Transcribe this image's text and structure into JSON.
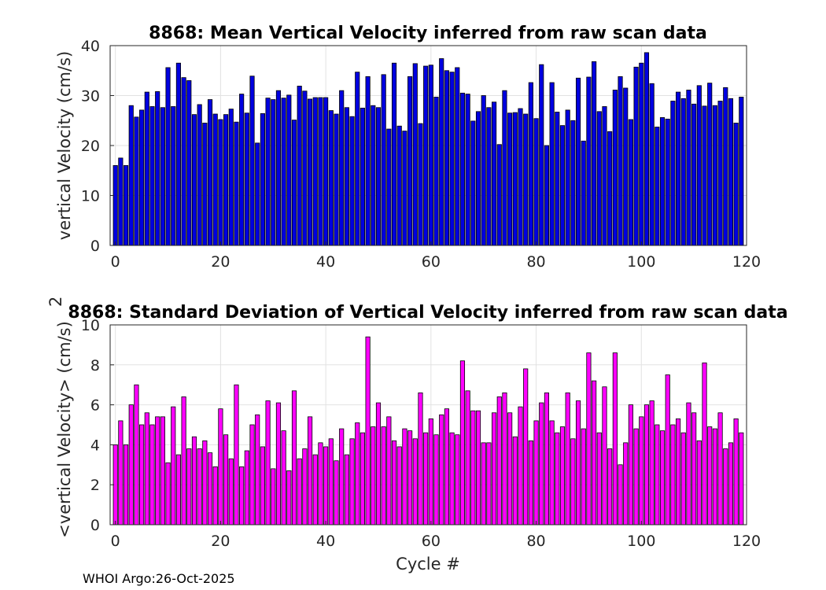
{
  "chart_data": [
    {
      "type": "bar",
      "title": "8868: Mean Vertical Velocity inferred from raw scan data",
      "xlabel": "",
      "ylabel": "vertical Velocity (cm/s)",
      "xlim": [
        -1,
        120
      ],
      "ylim": [
        0,
        40
      ],
      "xticks": [
        0,
        20,
        40,
        60,
        80,
        100,
        120
      ],
      "yticks": [
        0,
        10,
        20,
        30,
        40
      ],
      "grid": true,
      "bar_color": "#0000e0",
      "x_start": 0,
      "values": [
        16.0,
        17.5,
        16.0,
        28.0,
        25.7,
        27.1,
        30.7,
        27.8,
        30.8,
        27.6,
        35.6,
        27.8,
        36.5,
        33.6,
        33.0,
        26.2,
        28.2,
        24.5,
        29.2,
        26.3,
        25.2,
        26.2,
        27.3,
        24.7,
        30.3,
        26.5,
        33.9,
        20.5,
        26.4,
        29.5,
        29.2,
        31.0,
        29.5,
        30.1,
        25.1,
        31.9,
        30.9,
        29.3,
        29.6,
        29.6,
        29.6,
        27.0,
        26.3,
        31.0,
        27.6,
        25.8,
        34.7,
        27.5,
        33.8,
        28.0,
        27.6,
        34.2,
        23.3,
        36.5,
        23.9,
        22.9,
        33.8,
        36.4,
        24.4,
        35.9,
        36.1,
        29.7,
        37.4,
        35.0,
        34.7,
        35.6,
        30.5,
        30.3,
        24.9,
        26.8,
        30.0,
        27.6,
        28.7,
        20.2,
        31.0,
        26.5,
        26.6,
        27.4,
        26.3,
        32.6,
        25.4,
        36.2,
        20.0,
        32.6,
        26.7,
        24.0,
        27.1,
        25.0,
        33.5,
        20.9,
        33.7,
        36.8,
        26.8,
        27.8,
        22.8,
        31.1,
        33.8,
        31.5,
        25.2,
        35.7,
        36.5,
        38.6,
        32.4,
        23.7,
        25.6,
        25.3,
        28.9,
        30.7,
        29.4,
        31.1,
        28.3,
        32.0,
        27.9,
        32.5,
        28.0,
        28.9,
        31.6,
        29.4,
        24.5,
        29.7
      ]
    },
    {
      "type": "bar",
      "title": "8868: Standard Deviation of Vertical Velocity inferred from raw scan data",
      "xlabel": "Cycle #",
      "ylabel": "<vertical Velocity> (cm/s)",
      "ylabel_superscript": "2",
      "xlim": [
        -1,
        120
      ],
      "ylim": [
        0,
        10
      ],
      "xticks": [
        0,
        20,
        40,
        60,
        80,
        100,
        120
      ],
      "yticks": [
        0,
        2,
        4,
        6,
        8,
        10
      ],
      "grid": true,
      "bar_color": "#ff00ff",
      "x_start": 0,
      "values": [
        4.0,
        5.2,
        4.0,
        6.0,
        7.0,
        5.0,
        5.6,
        5.0,
        5.4,
        5.4,
        3.1,
        5.9,
        3.5,
        6.4,
        3.8,
        4.4,
        3.8,
        4.2,
        3.6,
        2.9,
        5.8,
        4.5,
        3.3,
        7.0,
        2.9,
        3.7,
        5.0,
        5.5,
        3.9,
        6.2,
        2.8,
        6.1,
        4.7,
        2.7,
        6.7,
        3.3,
        3.8,
        5.4,
        3.5,
        4.1,
        3.9,
        4.3,
        3.2,
        4.8,
        3.5,
        4.3,
        5.1,
        4.6,
        9.4,
        4.9,
        6.1,
        4.9,
        5.4,
        4.2,
        3.9,
        4.8,
        4.7,
        4.3,
        6.6,
        4.6,
        5.3,
        4.5,
        5.5,
        5.8,
        4.6,
        4.5,
        8.2,
        6.7,
        5.7,
        5.7,
        4.1,
        4.1,
        5.6,
        6.4,
        6.6,
        5.6,
        4.4,
        5.9,
        7.8,
        4.2,
        5.2,
        6.1,
        6.6,
        5.2,
        4.6,
        4.9,
        6.6,
        4.3,
        6.2,
        4.8,
        8.6,
        7.2,
        4.6,
        6.9,
        3.8,
        8.6,
        3.0,
        4.1,
        6.0,
        4.8,
        5.4,
        6.0,
        6.2,
        5.0,
        4.7,
        7.5,
        5.0,
        5.3,
        4.6,
        6.1,
        5.6,
        4.2,
        8.1,
        4.9,
        4.8,
        5.6,
        3.8,
        4.1,
        5.3,
        4.6
      ]
    }
  ],
  "footer": "WHOI Argo:26-Oct-2025"
}
